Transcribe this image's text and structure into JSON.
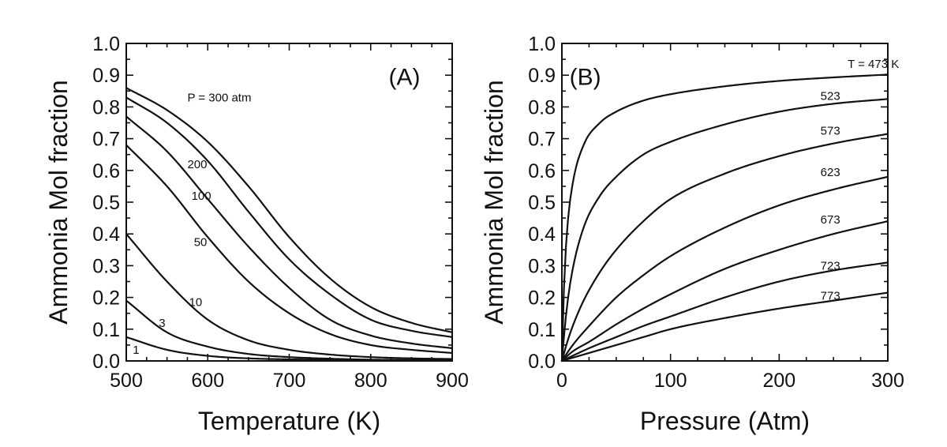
{
  "chart_data": [
    {
      "type": "line",
      "panel_label": "(A)",
      "xlabel": "Temperature (K)",
      "ylabel": "Ammonia Mol fraction",
      "xlim": [
        500,
        900
      ],
      "ylim": [
        0,
        1
      ],
      "xticks": [
        500,
        600,
        700,
        800,
        900
      ],
      "xtick_labels": [
        "500",
        "600",
        "700",
        "800",
        "900"
      ],
      "yticks": [
        0,
        0.1,
        0.2,
        0.3,
        0.4,
        0.5,
        0.6,
        0.7,
        0.8,
        0.9,
        1.0
      ],
      "ytick_labels": [
        "0.0",
        "0.1",
        "0.2",
        "0.3",
        "0.4",
        "0.5",
        "0.6",
        "0.7",
        "0.8",
        "0.9",
        "1.0"
      ],
      "grid": false,
      "legend": "none",
      "series": [
        {
          "label": "P = 300 atm",
          "label_at": [
            575,
            0.83
          ],
          "x": [
            500,
            550,
            600,
            650,
            700,
            750,
            800,
            850,
            900
          ],
          "y": [
            0.86,
            0.79,
            0.69,
            0.55,
            0.39,
            0.26,
            0.17,
            0.12,
            0.09
          ]
        },
        {
          "label": "200",
          "label_at": [
            575,
            0.62
          ],
          "x": [
            500,
            550,
            600,
            650,
            700,
            750,
            800,
            850,
            900
          ],
          "y": [
            0.83,
            0.75,
            0.63,
            0.47,
            0.32,
            0.21,
            0.13,
            0.095,
            0.075
          ]
        },
        {
          "label": "100",
          "label_at": [
            580,
            0.52
          ],
          "x": [
            500,
            550,
            600,
            650,
            700,
            750,
            800,
            850,
            900
          ],
          "y": [
            0.77,
            0.66,
            0.51,
            0.36,
            0.23,
            0.13,
            0.08,
            0.055,
            0.04
          ]
        },
        {
          "label": "50",
          "label_at": [
            583,
            0.375
          ],
          "x": [
            500,
            550,
            600,
            650,
            700,
            750,
            800,
            850,
            900
          ],
          "y": [
            0.68,
            0.55,
            0.39,
            0.25,
            0.15,
            0.085,
            0.05,
            0.035,
            0.025
          ]
        },
        {
          "label": "10",
          "label_at": [
            577,
            0.185
          ],
          "x": [
            500,
            550,
            600,
            650,
            700,
            750,
            800,
            850,
            900
          ],
          "y": [
            0.4,
            0.25,
            0.13,
            0.065,
            0.035,
            0.02,
            0.012,
            0.008,
            0.006
          ]
        },
        {
          "label": "3",
          "label_at": [
            540,
            0.12
          ],
          "x": [
            500,
            550,
            600,
            650,
            700,
            750,
            800,
            850,
            900
          ],
          "y": [
            0.19,
            0.09,
            0.045,
            0.022,
            0.012,
            0.007,
            0.004,
            0.003,
            0.002
          ]
        },
        {
          "label": "1",
          "label_at": [
            508,
            0.035
          ],
          "x": [
            500,
            550,
            600,
            650,
            700,
            750,
            800,
            850,
            900
          ],
          "y": [
            0.075,
            0.035,
            0.016,
            0.008,
            0.005,
            0.003,
            0.002,
            0.001,
            0.001
          ]
        }
      ]
    },
    {
      "type": "line",
      "panel_label": "(B)",
      "xlabel": "Pressure (Atm)",
      "ylabel": "Ammonia Mol fraction",
      "xlim": [
        0,
        300
      ],
      "ylim": [
        0,
        1
      ],
      "xticks": [
        0,
        100,
        200,
        300
      ],
      "xtick_labels": [
        "0",
        "100",
        "200",
        "300"
      ],
      "yticks": [
        0,
        0.1,
        0.2,
        0.3,
        0.4,
        0.5,
        0.6,
        0.7,
        0.8,
        0.9,
        1.0
      ],
      "ytick_labels": [
        "0.0",
        "0.1",
        "0.2",
        "0.3",
        "0.4",
        "0.5",
        "0.6",
        "0.7",
        "0.8",
        "0.9",
        "1.0"
      ],
      "grid": false,
      "legend": "none",
      "series": [
        {
          "label": "T = 473 K",
          "label_at": [
            263,
            0.935
          ],
          "x": [
            0,
            2,
            5,
            10,
            20,
            35,
            50,
            75,
            100,
            150,
            200,
            250,
            300
          ],
          "y": [
            0,
            0.24,
            0.42,
            0.56,
            0.68,
            0.75,
            0.785,
            0.82,
            0.84,
            0.865,
            0.882,
            0.893,
            0.902
          ]
        },
        {
          "label": "523",
          "label_at": [
            238,
            0.835
          ],
          "x": [
            0,
            2,
            5,
            10,
            20,
            35,
            50,
            75,
            100,
            150,
            200,
            250,
            300
          ],
          "y": [
            0,
            0.08,
            0.18,
            0.29,
            0.42,
            0.52,
            0.58,
            0.65,
            0.69,
            0.745,
            0.785,
            0.81,
            0.825
          ]
        },
        {
          "label": "573",
          "label_at": [
            238,
            0.725
          ],
          "x": [
            0,
            5,
            10,
            20,
            35,
            50,
            75,
            100,
            150,
            200,
            250,
            300
          ],
          "y": [
            0,
            0.06,
            0.11,
            0.19,
            0.28,
            0.35,
            0.44,
            0.51,
            0.59,
            0.645,
            0.685,
            0.715
          ]
        },
        {
          "label": "623",
          "label_at": [
            238,
            0.595
          ],
          "x": [
            0,
            10,
            25,
            50,
            75,
            100,
            150,
            200,
            250,
            300
          ],
          "y": [
            0,
            0.05,
            0.11,
            0.2,
            0.27,
            0.33,
            0.42,
            0.49,
            0.54,
            0.58
          ]
        },
        {
          "label": "673",
          "label_at": [
            238,
            0.445
          ],
          "x": [
            0,
            10,
            25,
            50,
            75,
            100,
            150,
            200,
            250,
            300
          ],
          "y": [
            0,
            0.03,
            0.06,
            0.115,
            0.165,
            0.21,
            0.29,
            0.35,
            0.4,
            0.44
          ]
        },
        {
          "label": "723",
          "label_at": [
            238,
            0.3
          ],
          "x": [
            0,
            25,
            50,
            75,
            100,
            150,
            200,
            250,
            300
          ],
          "y": [
            0,
            0.04,
            0.075,
            0.11,
            0.14,
            0.2,
            0.25,
            0.285,
            0.31
          ]
        },
        {
          "label": "773",
          "label_at": [
            238,
            0.205
          ],
          "x": [
            0,
            25,
            50,
            75,
            100,
            150,
            200,
            250,
            300
          ],
          "y": [
            0,
            0.025,
            0.05,
            0.075,
            0.1,
            0.135,
            0.165,
            0.19,
            0.215
          ]
        }
      ]
    }
  ]
}
